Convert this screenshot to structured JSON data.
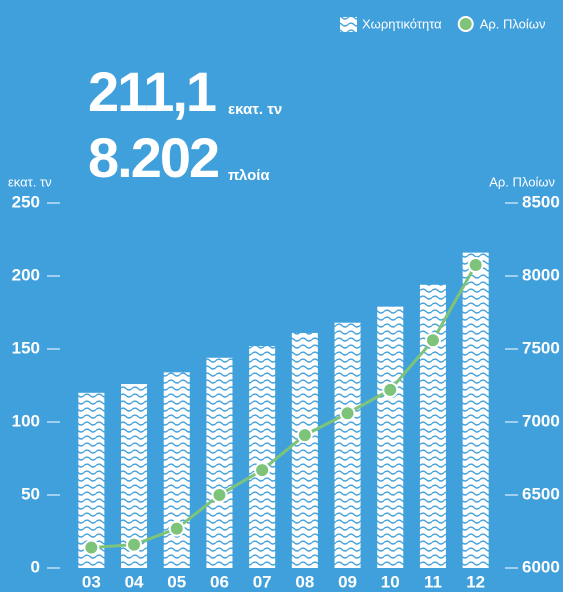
{
  "chart_data": {
    "type": "bar",
    "annotations": [
      "211,1",
      "εκατ. τν",
      "8.202",
      "πλοία"
    ],
    "ylabel": "εκατ. τν",
    "y2label": "Αρ. Πλοίων",
    "categories": [
      "03",
      "04",
      "05",
      "06",
      "07",
      "08",
      "09",
      "10",
      "11",
      "12"
    ],
    "series": [
      {
        "name": "Χωρητικότητα",
        "type": "bar",
        "color": "#ffffff",
        "values": [
          120,
          126,
          134,
          144,
          152,
          161,
          168,
          179,
          194,
          216
        ]
      },
      {
        "name": "Αρ. Πλοίων",
        "type": "line",
        "axis": "y2",
        "color": "#7dc47a",
        "values": [
          6140,
          6160,
          6270,
          6500,
          6670,
          6910,
          7060,
          7220,
          7560,
          8075
        ]
      }
    ],
    "ylim": [
      0,
      250
    ],
    "yticks": [
      0,
      50,
      100,
      150,
      200,
      250
    ],
    "y2lim": [
      6000,
      8500
    ],
    "y2ticks": [
      6000,
      6500,
      7000,
      7500,
      8000,
      8500
    ],
    "legend": "top-right"
  }
}
